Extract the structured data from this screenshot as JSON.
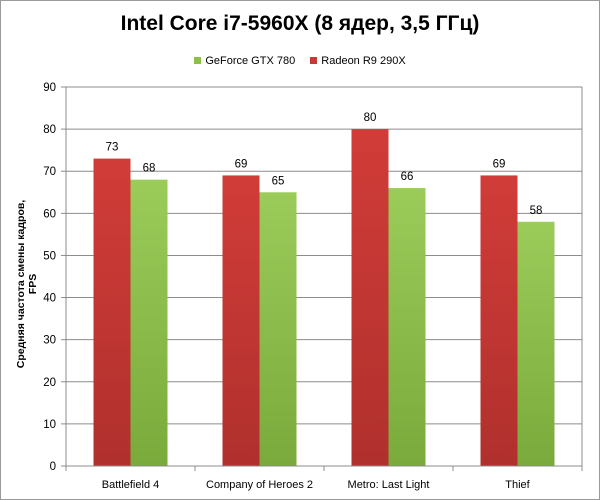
{
  "colors": {
    "series_1": "#c53a37",
    "series_2": "#8cc04a",
    "gridline": "#8c8c8c",
    "axis": "#8c8c8c"
  },
  "chart_data": {
    "type": "bar",
    "title": "Intel Core i7-5960X (8 ядер, 3,5 ГГц)",
    "xlabel": "",
    "ylabel": "Средняя частота  смены кадров, FPS",
    "ylim": [
      0,
      90
    ],
    "yticks": [
      0,
      10,
      20,
      30,
      40,
      50,
      60,
      70,
      80,
      90
    ],
    "grid": true,
    "legend_position": "top",
    "categories": [
      "Battlefield 4",
      "Company of Heroes 2",
      "Metro: Last Light",
      "Thief"
    ],
    "series": [
      {
        "name": "Radeon R9 290X",
        "values": [
          73,
          69,
          80,
          69
        ]
      },
      {
        "name": "GeForce GTX 780",
        "values": [
          68,
          65,
          66,
          58
        ]
      }
    ],
    "legend": [
      {
        "name": "GeForce GTX 780"
      },
      {
        "name": "Radeon R9 290X"
      }
    ]
  }
}
